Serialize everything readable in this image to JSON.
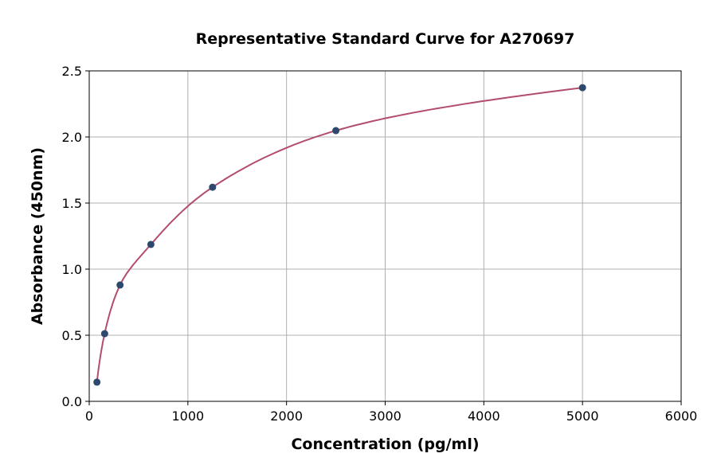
{
  "chart_data": {
    "type": "scatter",
    "title": "Representative Standard Curve for A270697",
    "xlabel": "Concentration (pg/ml)",
    "ylabel": "Absorbance (450nm)",
    "xlim": [
      0,
      6000
    ],
    "ylim": [
      0,
      2.5
    ],
    "xticks": [
      0,
      1000,
      2000,
      3000,
      4000,
      5000,
      6000
    ],
    "yticks": [
      0.0,
      0.5,
      1.0,
      1.5,
      2.0,
      2.5
    ],
    "xtick_labels": [
      "0",
      "1000",
      "2000",
      "3000",
      "4000",
      "5000",
      "6000"
    ],
    "ytick_labels": [
      "0.0",
      "0.5",
      "1.0",
      "1.5",
      "2.0",
      "2.5"
    ],
    "grid": true,
    "points": {
      "x": [
        78.125,
        156.25,
        312.5,
        625,
        1250,
        2500,
        5000
      ],
      "y": [
        0.145,
        0.512,
        0.88,
        1.187,
        1.62,
        2.048,
        2.373
      ]
    },
    "fit_curve": true,
    "colors": {
      "points": "#2d4a6e",
      "curve": "#b34d6e",
      "grid": "#b0b0b0"
    }
  }
}
